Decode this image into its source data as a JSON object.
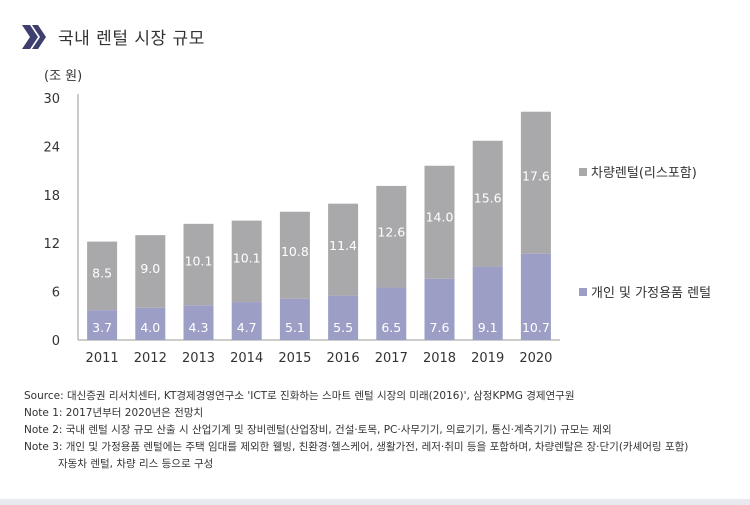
{
  "title": "국내 렌털 시장 규모",
  "unit_label": "(조 원)",
  "colors": {
    "accent": "#3e3f6e",
    "series_top": "#a9a9ac",
    "series_bottom": "#9c9ec6",
    "axis": "#999999",
    "label_text": "#ffffff"
  },
  "notes": {
    "source": "Source: 대신증권 리서치센터, KT경제경영연구소 'ICT로 진화하는 스마트 렌털 시장의 미래(2016)', 삼정KPMG 경제연구원",
    "note1": "Note 1: 2017년부터 2020년은 전망치",
    "note2": "Note 2: 국내 렌털 시장 규모 산출 시 산업기계 및 장비렌털(산업장비, 건설·토목, PC·사무기기, 의료기기, 통신·계측기기) 규모는 제외",
    "note3_line1": "Note 3: 개인 및 가정용품 렌털에는 주택 임대를 제외한 웰빙, 친환경·헬스케어, 생활가전, 레저·취미 등을 포함하며, 차량렌탈은 장·단기(카셰어링 포함)",
    "note3_line2": "자동차 렌털, 차량 리스 등으로 구성"
  },
  "chart_data": {
    "type": "bar",
    "stacked": true,
    "categories": [
      "2011",
      "2012",
      "2013",
      "2014",
      "2015",
      "2016",
      "2017",
      "2018",
      "2019",
      "2020"
    ],
    "series": [
      {
        "name": "개인 및 가정용품 렌털",
        "color": "#9c9ec6",
        "values": [
          3.7,
          4.0,
          4.3,
          4.7,
          5.1,
          5.5,
          6.5,
          7.6,
          9.1,
          10.7
        ]
      },
      {
        "name": "차량렌털(리스포함)",
        "color": "#a9a9ac",
        "values": [
          8.5,
          9.0,
          10.1,
          10.1,
          10.8,
          11.4,
          12.6,
          14.0,
          15.6,
          17.6
        ]
      }
    ],
    "ylabel": "(조 원)",
    "yticks": [
      0,
      6,
      12,
      18,
      24,
      30
    ],
    "ylim": [
      0,
      30
    ],
    "grid": false,
    "legend_position": "right",
    "legend_order": [
      "차량렌털(리스포함)",
      "개인 및 가정용품 렌털"
    ]
  }
}
